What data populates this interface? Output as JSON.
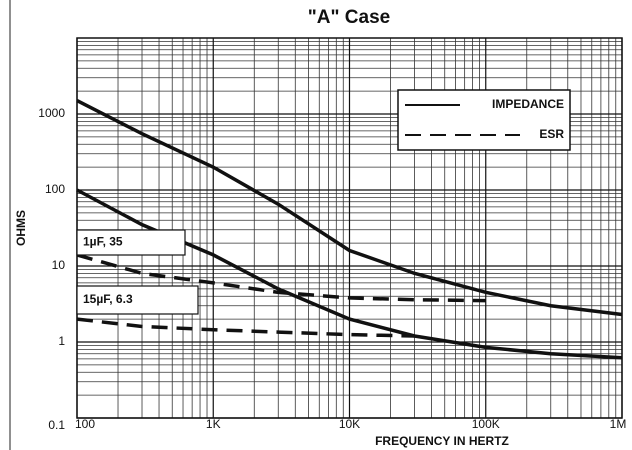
{
  "chart_data": {
    "type": "line",
    "title": "\"A\" Case",
    "xlabel": "FREQUENCY IN HERTZ",
    "ylabel": "OHMS",
    "xscale": "log",
    "yscale": "log",
    "grid": true,
    "minor_grid": true,
    "xlim": [
      100,
      1000000
    ],
    "ylim": [
      0.1,
      10000
    ],
    "xticks": [
      100,
      {
        "value": 1000,
        "label": "1K"
      },
      {
        "value": 10000,
        "label": "10K"
      },
      {
        "value": 100000,
        "label": "100K"
      },
      {
        "value": 1000000,
        "label": "1M"
      }
    ],
    "yticks": [
      0.1,
      1,
      10,
      100,
      1000
    ],
    "x": [
      100,
      300,
      1000,
      3000,
      10000,
      30000,
      100000,
      300000,
      1000000
    ],
    "legend": [
      {
        "label": "IMPEDANCE",
        "dash": "solid"
      },
      {
        "label": "ESR",
        "dash": "dashed"
      }
    ],
    "annotations": [
      "1µF, 35",
      "15µF, 6.3"
    ],
    "series": [
      {
        "dash": "solid",
        "color": "#111111",
        "values": [
          1500,
          550,
          200,
          65,
          16,
          8,
          4.5,
          3,
          2.3
        ]
      },
      {
        "dash": "dashed",
        "color": "#111111",
        "values": [
          14,
          8,
          6,
          4.5,
          3.8,
          3.6,
          3.5,
          null,
          null
        ]
      },
      {
        "dash": "solid",
        "color": "#111111",
        "values": [
          100,
          35,
          14,
          5,
          2,
          1.2,
          0.85,
          0.7,
          0.62
        ]
      },
      {
        "dash": "dashed",
        "color": "#111111",
        "values": [
          2,
          1.6,
          1.45,
          1.35,
          1.25,
          1.2,
          null,
          null,
          null
        ]
      }
    ]
  }
}
